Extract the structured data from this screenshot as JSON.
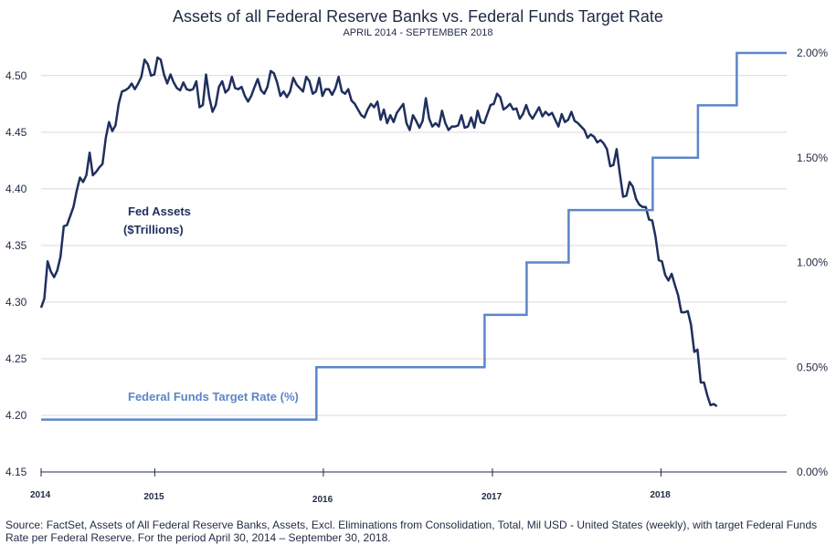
{
  "chart_data": {
    "type": "line",
    "title": "Assets of all Federal Reserve Banks vs. Federal Funds Target Rate",
    "subtitle": "APRIL 2014 - SEPTEMBER 2018",
    "x_range": [
      "2014-04-30",
      "2018-09-30"
    ],
    "x_ticks": [
      {
        "date": "2014-04-30",
        "label": "2014"
      },
      {
        "date": "2015-01-01",
        "label": "2015"
      },
      {
        "date": "2016-01-01",
        "label": "2016"
      },
      {
        "date": "2017-01-01",
        "label": "2017"
      },
      {
        "date": "2018-01-01",
        "label": "2018"
      }
    ],
    "ylim_left": [
      4.15,
      4.52
    ],
    "yticks_left": [
      "4.15",
      "4.20",
      "4.25",
      "4.30",
      "4.35",
      "4.40",
      "4.45",
      "4.50"
    ],
    "ylim_right": [
      0.0,
      2.0
    ],
    "yticks_right": [
      "0.00%",
      "0.50%",
      "1.00%",
      "1.50%",
      "2.00%"
    ],
    "grid": true,
    "series": [
      {
        "name": "Fed Assets ($Trillions)",
        "axis": "left",
        "color": "#1f2f5e",
        "points": [
          [
            "2014-04-30",
            4.295
          ],
          [
            "2014-05-07",
            4.303
          ],
          [
            "2014-05-14",
            4.336
          ],
          [
            "2014-05-21",
            4.327
          ],
          [
            "2014-05-28",
            4.322
          ],
          [
            "2014-06-04",
            4.328
          ],
          [
            "2014-06-11",
            4.34
          ],
          [
            "2014-06-18",
            4.367
          ],
          [
            "2014-06-25",
            4.368
          ],
          [
            "2014-07-02",
            4.376
          ],
          [
            "2014-07-09",
            4.384
          ],
          [
            "2014-07-16",
            4.398
          ],
          [
            "2014-07-23",
            4.41
          ],
          [
            "2014-07-30",
            4.406
          ],
          [
            "2014-08-06",
            4.412
          ],
          [
            "2014-08-13",
            4.432
          ],
          [
            "2014-08-20",
            4.412
          ],
          [
            "2014-08-27",
            4.415
          ],
          [
            "2014-09-03",
            4.419
          ],
          [
            "2014-09-10",
            4.422
          ],
          [
            "2014-09-17",
            4.445
          ],
          [
            "2014-09-24",
            4.459
          ],
          [
            "2014-10-01",
            4.451
          ],
          [
            "2014-10-08",
            4.456
          ],
          [
            "2014-10-15",
            4.475
          ],
          [
            "2014-10-22",
            4.486
          ],
          [
            "2014-10-29",
            4.487
          ],
          [
            "2014-11-05",
            4.489
          ],
          [
            "2014-11-12",
            4.493
          ],
          [
            "2014-11-19",
            4.488
          ],
          [
            "2014-11-26",
            4.493
          ],
          [
            "2014-12-03",
            4.499
          ],
          [
            "2014-12-10",
            4.514
          ],
          [
            "2014-12-17",
            4.51
          ],
          [
            "2014-12-24",
            4.5
          ],
          [
            "2014-12-31",
            4.501
          ],
          [
            "2015-01-07",
            4.516
          ],
          [
            "2015-01-14",
            4.514
          ],
          [
            "2015-01-21",
            4.501
          ],
          [
            "2015-01-28",
            4.493
          ],
          [
            "2015-02-04",
            4.501
          ],
          [
            "2015-02-11",
            4.494
          ],
          [
            "2015-02-18",
            4.489
          ],
          [
            "2015-02-25",
            4.487
          ],
          [
            "2015-03-04",
            4.494
          ],
          [
            "2015-03-11",
            4.488
          ],
          [
            "2015-03-18",
            4.487
          ],
          [
            "2015-03-25",
            4.488
          ],
          [
            "2015-04-01",
            4.495
          ],
          [
            "2015-04-08",
            4.472
          ],
          [
            "2015-04-15",
            4.474
          ],
          [
            "2015-04-22",
            4.501
          ],
          [
            "2015-04-29",
            4.481
          ],
          [
            "2015-05-06",
            4.468
          ],
          [
            "2015-05-13",
            4.474
          ],
          [
            "2015-05-20",
            4.49
          ],
          [
            "2015-05-27",
            4.495
          ],
          [
            "2015-06-03",
            4.485
          ],
          [
            "2015-06-10",
            4.488
          ],
          [
            "2015-06-17",
            4.499
          ],
          [
            "2015-06-24",
            4.489
          ],
          [
            "2015-07-01",
            4.488
          ],
          [
            "2015-07-08",
            4.49
          ],
          [
            "2015-07-15",
            4.482
          ],
          [
            "2015-07-22",
            4.477
          ],
          [
            "2015-07-29",
            4.482
          ],
          [
            "2015-08-05",
            4.49
          ],
          [
            "2015-08-12",
            4.497
          ],
          [
            "2015-08-19",
            4.487
          ],
          [
            "2015-08-26",
            4.484
          ],
          [
            "2015-09-02",
            4.49
          ],
          [
            "2015-09-09",
            4.504
          ],
          [
            "2015-09-16",
            4.502
          ],
          [
            "2015-09-23",
            4.494
          ],
          [
            "2015-09-30",
            4.482
          ],
          [
            "2015-10-07",
            4.486
          ],
          [
            "2015-10-14",
            4.481
          ],
          [
            "2015-10-21",
            4.486
          ],
          [
            "2015-10-28",
            4.498
          ],
          [
            "2015-11-04",
            4.492
          ],
          [
            "2015-11-11",
            4.489
          ],
          [
            "2015-11-18",
            4.486
          ],
          [
            "2015-11-25",
            4.499
          ],
          [
            "2015-12-02",
            4.495
          ],
          [
            "2015-12-09",
            4.484
          ],
          [
            "2015-12-16",
            4.486
          ],
          [
            "2015-12-23",
            4.498
          ],
          [
            "2015-12-30",
            4.482
          ],
          [
            "2016-01-06",
            4.488
          ],
          [
            "2016-01-13",
            4.488
          ],
          [
            "2016-01-20",
            4.483
          ],
          [
            "2016-01-27",
            4.489
          ],
          [
            "2016-02-03",
            4.499
          ],
          [
            "2016-02-10",
            4.486
          ],
          [
            "2016-02-17",
            4.484
          ],
          [
            "2016-02-24",
            4.488
          ],
          [
            "2016-03-02",
            4.478
          ],
          [
            "2016-03-09",
            4.475
          ],
          [
            "2016-03-16",
            4.47
          ],
          [
            "2016-03-23",
            4.465
          ],
          [
            "2016-03-30",
            4.463
          ],
          [
            "2016-04-06",
            4.47
          ],
          [
            "2016-04-13",
            4.475
          ],
          [
            "2016-04-20",
            4.472
          ],
          [
            "2016-04-27",
            4.477
          ],
          [
            "2016-05-04",
            4.461
          ],
          [
            "2016-05-11",
            4.47
          ],
          [
            "2016-05-18",
            4.458
          ],
          [
            "2016-05-25",
            4.465
          ],
          [
            "2016-06-01",
            4.459
          ],
          [
            "2016-06-08",
            4.467
          ],
          [
            "2016-06-15",
            4.471
          ],
          [
            "2016-06-22",
            4.475
          ],
          [
            "2016-06-29",
            4.458
          ],
          [
            "2016-07-06",
            4.452
          ],
          [
            "2016-07-13",
            4.465
          ],
          [
            "2016-07-20",
            4.46
          ],
          [
            "2016-07-27",
            4.454
          ],
          [
            "2016-08-03",
            4.46
          ],
          [
            "2016-08-10",
            4.48
          ],
          [
            "2016-08-17",
            4.462
          ],
          [
            "2016-08-24",
            4.455
          ],
          [
            "2016-08-31",
            4.458
          ],
          [
            "2016-09-07",
            4.455
          ],
          [
            "2016-09-14",
            4.469
          ],
          [
            "2016-09-21",
            4.458
          ],
          [
            "2016-09-28",
            4.452
          ],
          [
            "2016-10-05",
            4.455
          ],
          [
            "2016-10-12",
            4.455
          ],
          [
            "2016-10-19",
            4.456
          ],
          [
            "2016-10-26",
            4.465
          ],
          [
            "2016-11-02",
            4.454
          ],
          [
            "2016-11-09",
            4.455
          ],
          [
            "2016-11-16",
            4.463
          ],
          [
            "2016-11-23",
            4.454
          ],
          [
            "2016-11-30",
            4.469
          ],
          [
            "2016-12-07",
            4.459
          ],
          [
            "2016-12-14",
            4.458
          ],
          [
            "2016-12-21",
            4.466
          ],
          [
            "2016-12-28",
            4.474
          ],
          [
            "2017-01-04",
            4.475
          ],
          [
            "2017-01-11",
            4.484
          ],
          [
            "2017-01-18",
            4.481
          ],
          [
            "2017-01-25",
            4.47
          ],
          [
            "2017-02-01",
            4.472
          ],
          [
            "2017-02-08",
            4.475
          ],
          [
            "2017-02-15",
            4.47
          ],
          [
            "2017-02-22",
            4.471
          ],
          [
            "2017-03-01",
            4.462
          ],
          [
            "2017-03-08",
            4.466
          ],
          [
            "2017-03-15",
            4.474
          ],
          [
            "2017-03-22",
            4.466
          ],
          [
            "2017-03-29",
            4.462
          ],
          [
            "2017-04-05",
            4.467
          ],
          [
            "2017-04-12",
            4.472
          ],
          [
            "2017-04-19",
            4.464
          ],
          [
            "2017-04-26",
            4.468
          ],
          [
            "2017-05-03",
            4.465
          ],
          [
            "2017-05-10",
            4.467
          ],
          [
            "2017-05-17",
            4.461
          ],
          [
            "2017-05-24",
            4.455
          ],
          [
            "2017-05-31",
            4.466
          ],
          [
            "2017-06-07",
            4.459
          ],
          [
            "2017-06-14",
            4.461
          ],
          [
            "2017-06-21",
            4.468
          ],
          [
            "2017-06-28",
            4.46
          ],
          [
            "2017-07-05",
            4.458
          ],
          [
            "2017-07-12",
            4.455
          ],
          [
            "2017-07-19",
            4.452
          ],
          [
            "2017-07-26",
            4.445
          ],
          [
            "2017-08-02",
            4.448
          ],
          [
            "2017-08-09",
            4.446
          ],
          [
            "2017-08-16",
            4.441
          ],
          [
            "2017-08-23",
            4.443
          ],
          [
            "2017-08-30",
            4.44
          ],
          [
            "2017-09-06",
            4.435
          ],
          [
            "2017-09-13",
            4.42
          ],
          [
            "2017-09-20",
            4.421
          ],
          [
            "2017-09-27",
            4.435
          ],
          [
            "2017-10-04",
            4.413
          ],
          [
            "2017-10-11",
            4.393
          ],
          [
            "2017-10-18",
            4.394
          ],
          [
            "2017-10-25",
            4.406
          ],
          [
            "2017-11-01",
            4.402
          ],
          [
            "2017-11-08",
            4.391
          ],
          [
            "2017-11-15",
            4.386
          ],
          [
            "2017-11-22",
            4.384
          ],
          [
            "2017-11-29",
            4.384
          ],
          [
            "2017-12-06",
            4.373
          ],
          [
            "2017-12-13",
            4.372
          ],
          [
            "2017-12-20",
            4.358
          ],
          [
            "2017-12-27",
            4.337
          ],
          [
            "2018-01-03",
            4.336
          ],
          [
            "2018-01-10",
            4.324
          ],
          [
            "2018-01-17",
            4.319
          ],
          [
            "2018-01-24",
            4.325
          ],
          [
            "2018-01-31",
            4.315
          ],
          [
            "2018-02-07",
            4.306
          ],
          [
            "2018-02-14",
            4.291
          ],
          [
            "2018-02-21",
            4.291
          ],
          [
            "2018-02-28",
            4.292
          ],
          [
            "2018-03-07",
            4.28
          ],
          [
            "2018-03-14",
            4.256
          ],
          [
            "2018-03-21",
            4.258
          ],
          [
            "2018-03-28",
            4.229
          ],
          [
            "2018-04-04",
            4.229
          ],
          [
            "2018-04-11",
            4.218
          ],
          [
            "2018-04-18",
            4.209
          ],
          [
            "2018-04-25",
            4.21
          ],
          [
            "2018-05-02",
            4.208
          ]
        ]
      },
      {
        "name": "Federal Funds Target Rate (%)",
        "axis": "right",
        "color": "#5b86c8",
        "step": true,
        "points": [
          [
            "2014-04-30",
            0.25
          ],
          [
            "2015-12-17",
            0.5
          ],
          [
            "2016-12-15",
            0.75
          ],
          [
            "2017-03-16",
            1.0
          ],
          [
            "2017-06-15",
            1.25
          ],
          [
            "2017-12-14",
            1.5
          ],
          [
            "2018-03-22",
            1.75
          ],
          [
            "2018-06-14",
            2.0
          ],
          [
            "2018-09-30",
            2.0
          ]
        ]
      }
    ],
    "annotations": {
      "assets_label_line1": "Fed Assets",
      "assets_label_line2": "($Trillions)",
      "rate_label": "Federal Funds Target Rate (%)"
    }
  },
  "source_note": "Source: FactSet, Assets of All Federal Reserve Banks, Assets, Excl. Eliminations from Consolidation, Total, Mil USD - United States (weekly), with target Federal Funds Rate per Federal Reserve. For the period April 30, 2014 – September 30, 2018."
}
